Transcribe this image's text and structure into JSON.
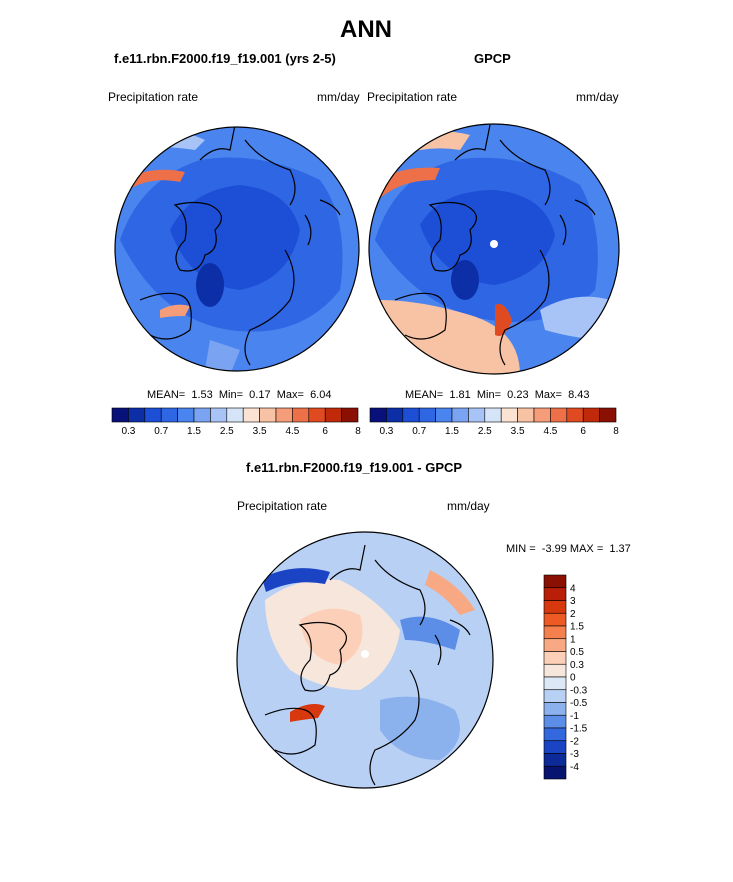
{
  "page": {
    "title": "ANN",
    "panel_left_title": "f.e11.rbn.F2000.f19_f19.001 (yrs 2-5)",
    "panel_right_title": "GPCP",
    "diff_title": "f.e11.rbn.F2000.f19_f19.001 - GPCP"
  },
  "chart_data": [
    {
      "type": "heatmap",
      "projection": "north-polar-stereographic",
      "name": "model",
      "title": "f.e11.rbn.F2000.f19_f19.001 (yrs 2-5)",
      "variable": "Precipitation rate",
      "units": "mm/day",
      "stats": {
        "mean_label": "MEAN=",
        "mean": "1.53",
        "min_label": "Min=",
        "min": "0.17",
        "max_label": "Max=",
        "max": "6.04"
      },
      "levels_labels": [
        "0.3",
        "0.7",
        "1.5",
        "2.5",
        "3.5",
        "4.5",
        "6",
        "8"
      ],
      "colors": [
        "#08107a",
        "#0c2fa8",
        "#1d4fd6",
        "#2e66e4",
        "#4a84ee",
        "#7aa4f2",
        "#a8c4f6",
        "#d6e4f8",
        "#fbe2d2",
        "#f8c2a4",
        "#f59c78",
        "#ee7048",
        "#e04a20",
        "#c02a0a",
        "#8a1004"
      ]
    },
    {
      "type": "heatmap",
      "projection": "north-polar-stereographic",
      "name": "observed",
      "title": "GPCP",
      "variable": "Precipitation rate",
      "units": "mm/day",
      "stats": {
        "mean_label": "MEAN=",
        "mean": "1.81",
        "min_label": "Min=",
        "min": "0.23",
        "max_label": "Max=",
        "max": "8.43"
      },
      "levels_labels": [
        "0.3",
        "0.7",
        "1.5",
        "2.5",
        "3.5",
        "4.5",
        "6",
        "8"
      ],
      "colors": [
        "#08107a",
        "#0c2fa8",
        "#1d4fd6",
        "#2e66e4",
        "#4a84ee",
        "#7aa4f2",
        "#a8c4f6",
        "#d6e4f8",
        "#fbe2d2",
        "#f8c2a4",
        "#f59c78",
        "#ee7048",
        "#e04a20",
        "#c02a0a",
        "#8a1004"
      ]
    },
    {
      "type": "heatmap",
      "projection": "north-polar-stereographic",
      "name": "difference",
      "title": "f.e11.rbn.F2000.f19_f19.001 - GPCP",
      "variable": "Precipitation rate",
      "units": "mm/day",
      "stats": {
        "min_label": "MIN =",
        "min": "-3.99",
        "max_label": "MAX =",
        "max": "1.37"
      },
      "levels_labels": [
        "4",
        "3",
        "2",
        "1.5",
        "1",
        "0.5",
        "0.3",
        "0",
        "-0.3",
        "-0.5",
        "-1",
        "-1.5",
        "-2",
        "-3",
        "-4"
      ],
      "colors": [
        "#8a1004",
        "#b81e08",
        "#d8380e",
        "#ee5a24",
        "#f4804e",
        "#f8a882",
        "#fcd0b8",
        "#f6e6dc",
        "#dde8f6",
        "#b8d0f4",
        "#8cb2ee",
        "#5c8ee8",
        "#3468de",
        "#1a44c4",
        "#0c2a98",
        "#061470"
      ]
    }
  ]
}
